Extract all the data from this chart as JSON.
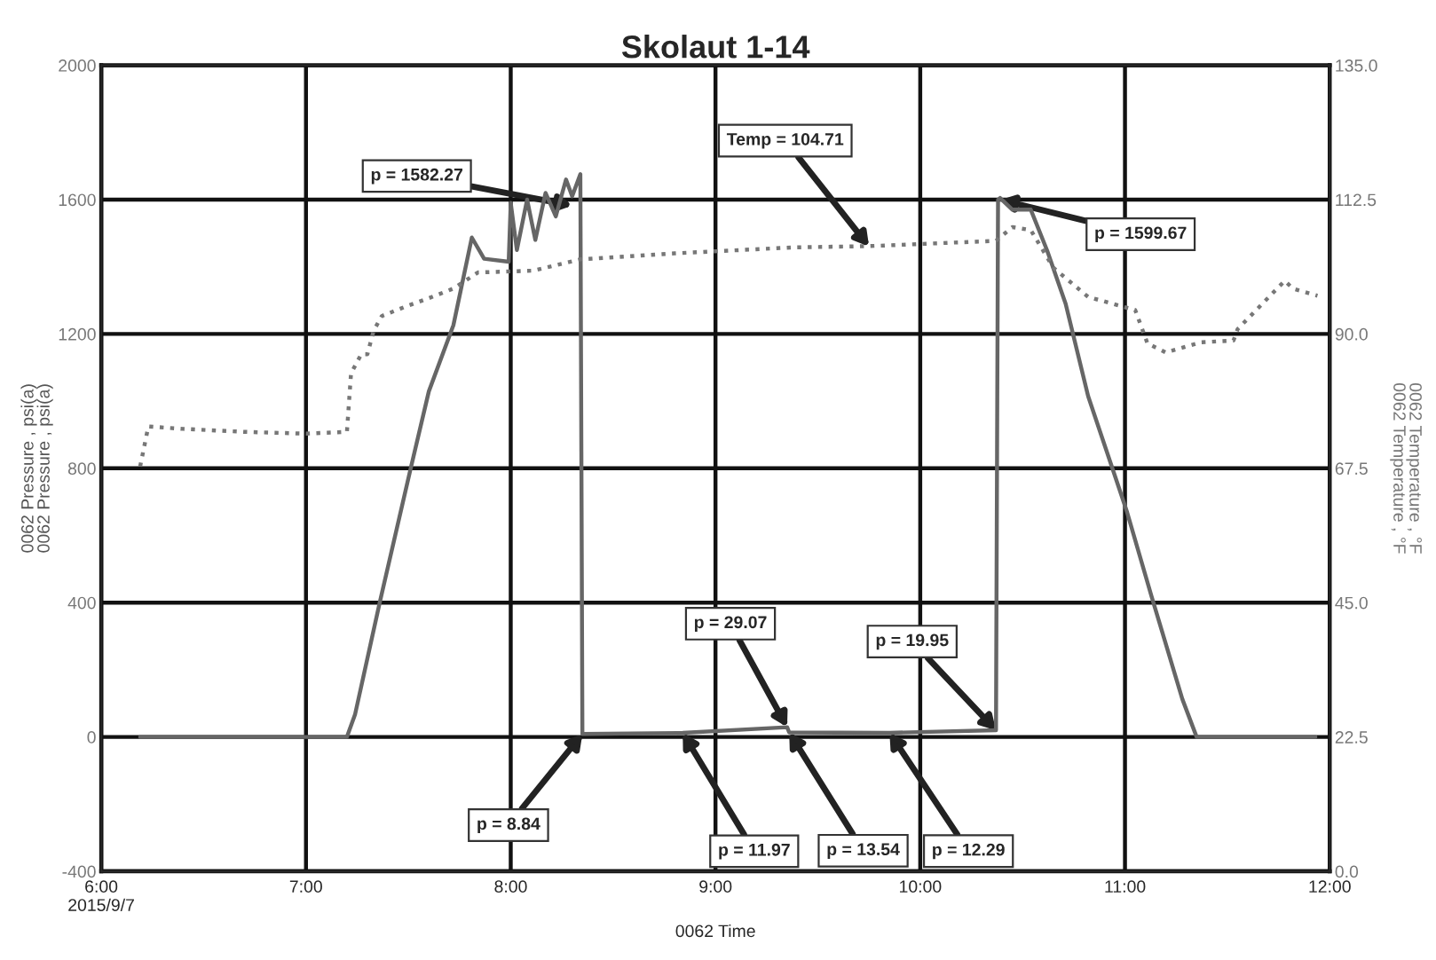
{
  "chart_data": {
    "type": "line",
    "title": "Skolaut 1-14",
    "xlabel": "0062 Time",
    "ylabel": "0062 Pressure , psi(a)\n0062 Pressure , psi(a)",
    "y2label": "0062 Temperature , °F\n0062 Temperature , °F",
    "xlim": [
      6,
      12
    ],
    "xticks": [
      {
        "value": 6,
        "label": "6:00\n2015/9/7"
      },
      {
        "value": 7,
        "label": "7:00"
      },
      {
        "value": 8,
        "label": "8:00"
      },
      {
        "value": 9,
        "label": "9:00"
      },
      {
        "value": 10,
        "label": "10:00"
      },
      {
        "value": 11,
        "label": "11:00"
      },
      {
        "value": 12,
        "label": "12:00"
      }
    ],
    "ylim": [
      -400,
      2000
    ],
    "yticks": [
      -400,
      0,
      400,
      800,
      1200,
      1600,
      2000
    ],
    "y2lim": [
      0,
      135
    ],
    "y2ticks": [
      {
        "value": 0,
        "label": "0.0"
      },
      {
        "value": 22.5,
        "label": "22.5"
      },
      {
        "value": 45,
        "label": "45.0"
      },
      {
        "value": 67.5,
        "label": "67.5"
      },
      {
        "value": 90,
        "label": "90.0"
      },
      {
        "value": 112.5,
        "label": "112.5"
      },
      {
        "value": 135,
        "label": "135.0"
      }
    ],
    "grid": true,
    "legend": false,
    "marker": "none",
    "series": [
      {
        "color": "#666666",
        "line_style": "solid",
        "x": [
          6.19,
          7.2,
          7.24,
          7.36,
          7.51,
          7.6,
          7.72,
          7.81,
          7.87,
          7.99,
          8.0,
          8.03,
          8.08,
          8.12,
          8.17,
          8.22,
          8.27,
          8.3,
          8.34,
          8.35,
          8.84,
          9.35,
          9.36,
          9.85,
          10.37,
          10.38,
          10.39,
          10.45,
          10.54,
          10.62,
          10.71,
          10.82,
          11.01,
          11.13,
          11.28,
          11.35,
          11.93
        ],
        "values": [
          0,
          0,
          68,
          400,
          796,
          1029,
          1226,
          1487,
          1424,
          1415,
          1590,
          1450,
          1600,
          1480,
          1620,
          1550,
          1660,
          1610,
          1676,
          8.84,
          11.97,
          29.07,
          13.54,
          12.29,
          19.95,
          1599.67,
          1605,
          1570,
          1570,
          1448,
          1290,
          1015,
          670,
          418,
          113,
          0,
          0
        ]
      },
      {
        "color": "#777777",
        "line_style": "dotted",
        "axis": "y2",
        "x": [
          6.19,
          6.23,
          6.4,
          6.7,
          7.0,
          7.2,
          7.22,
          7.27,
          7.3,
          7.33,
          7.37,
          7.48,
          7.6,
          7.72,
          7.84,
          8.11,
          8.34,
          8.8,
          9.38,
          9.75,
          10.37,
          10.45,
          10.54,
          10.65,
          10.82,
          11.05,
          11.11,
          11.2,
          11.37,
          11.53,
          11.55,
          11.78,
          11.82,
          11.94
        ],
        "values": [
          67.8,
          74.5,
          74.1,
          73.6,
          73.3,
          73.6,
          83.4,
          86.6,
          86.6,
          90.5,
          93.0,
          94.5,
          96.0,
          97.6,
          100.3,
          100.6,
          102.5,
          103.5,
          104.5,
          104.71,
          105.6,
          107.9,
          107.4,
          101.1,
          96.2,
          94.0,
          88.4,
          86.9,
          88.6,
          88.9,
          90.8,
          98.9,
          97.6,
          96.4
        ]
      }
    ],
    "annotations": [
      {
        "text": "p = 1582.27",
        "x": 8.3,
        "y": 1582.27
      },
      {
        "text": "Temp = 104.71",
        "x": 9.75,
        "y": 1460
      },
      {
        "text": "p = 1599.67",
        "x": 10.39,
        "y": 1599.67
      },
      {
        "text": "p = 29.07",
        "x": 9.35,
        "y": 29.07
      },
      {
        "text": "p = 19.95",
        "x": 10.37,
        "y": 19.95
      },
      {
        "text": "p = 8.84",
        "x": 8.35,
        "y": 8.84
      },
      {
        "text": "p = 11.97",
        "x": 8.84,
        "y": 11.97
      },
      {
        "text": "p = 13.54",
        "x": 9.36,
        "y": 13.54
      },
      {
        "text": "p = 12.29",
        "x": 9.85,
        "y": 12.29
      }
    ]
  }
}
